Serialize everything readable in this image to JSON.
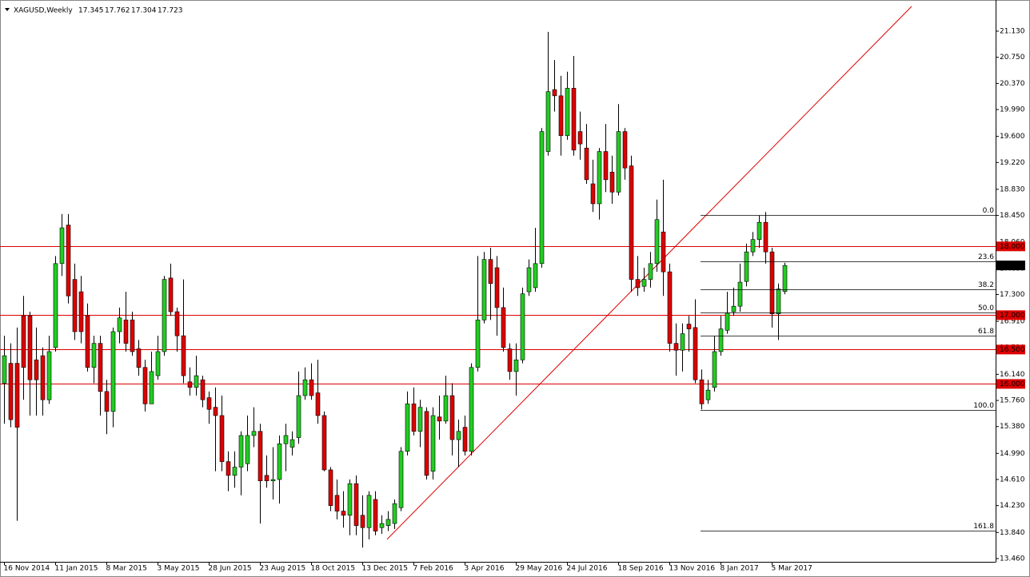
{
  "chart_data": {
    "type": "candlestick",
    "title": "XAGUSD,Weekly",
    "categories": [
      "16 Nov 2014",
      null,
      null,
      null,
      null,
      null,
      null,
      null,
      "11 Jan 2015",
      null,
      null,
      null,
      null,
      null,
      null,
      null,
      "8 Mar 2015",
      null,
      null,
      null,
      null,
      null,
      null,
      null,
      "3 May 2015",
      null,
      null,
      null,
      null,
      null,
      null,
      null,
      "28 Jun 2015",
      null,
      null,
      null,
      null,
      null,
      null,
      null,
      "23 Aug 2015",
      null,
      null,
      null,
      null,
      null,
      null,
      null,
      "18 Oct 2015",
      null,
      null,
      null,
      null,
      null,
      null,
      null,
      "13 Dec 2015",
      null,
      null,
      null,
      null,
      null,
      null,
      null,
      "7 Feb 2016",
      null,
      null,
      null,
      null,
      null,
      null,
      null,
      "3 Apr 2016",
      null,
      null,
      null,
      null,
      null,
      null,
      null,
      "29 May 2016",
      null,
      null,
      null,
      null,
      null,
      null,
      null,
      "24 Jul 2016",
      null,
      null,
      null,
      null,
      null,
      null,
      null,
      "18 Sep 2016",
      null,
      null,
      null,
      null,
      null,
      null,
      null,
      "13 Nov 2016",
      null,
      null,
      null,
      null,
      null,
      null,
      null,
      "8 Jan 2017",
      null,
      null,
      null,
      null,
      null,
      null,
      null,
      "5 Mar 2017",
      null,
      null
    ],
    "open": [
      16.01,
      16.3,
      16.3,
      16.99,
      16.99,
      16.35,
      16.41,
      15.77,
      16.53,
      17.75,
      18.31,
      17.52,
      17.34,
      16.99,
      16.24,
      16.59,
      15.89,
      15.6,
      16.76,
      16.93,
      16.93,
      16.51,
      16.24,
      15.71,
      16.12,
      16.47,
      17.54,
      17.05,
      16.7,
      16.03,
      15.95,
      16.06,
      15.8,
      15.66,
      15.54,
      14.87,
      14.67,
      14.79,
      14.84,
      15.25,
      15.31,
      14.67,
      14.59,
      14.61,
      15.13,
      15.08,
      15.22,
      15.83,
      16.06,
      15.87,
      15.54,
      14.75,
      14.38,
      14.15,
      14.09,
      14.55,
      14.09,
      13.91,
      14.32,
      13.91,
      13.94,
      13.97,
      14.2,
      15.02,
      15.71,
      15.31,
      15.6,
      14.73,
      15.52,
      15.46,
      15.83,
      15.19,
      15.37,
      15.02,
      16.24,
      16.93,
      17.81,
      17.69,
      17.11,
      16.51,
      16.18,
      16.35,
      17.34,
      17.4,
      17.75,
      19.38,
      20.28,
      20.19,
      19.61,
      20.3,
      19.67,
      19.43,
      18.91,
      18.62,
      19.38,
      19.08,
      18.79,
      19.67,
      19.17,
      17.52,
      17.42,
      17.52,
      17.75,
      18.21,
      17.63,
      16.59,
      16.49,
      16.87,
      16.82,
      16.06,
      15.77,
      15.95,
      16.47,
      16.78,
      17.05,
      17.13,
      17.49,
      17.92,
      18.1,
      18.35,
      17.92,
      17.02,
      17.345
    ],
    "high": [
      16.7,
      16.59,
      16.82,
      17.28,
      17.05,
      16.82,
      16.53,
      16.7,
      17.86,
      18.47,
      18.47,
      17.75,
      17.57,
      17.17,
      16.7,
      16.7,
      16.06,
      16.82,
      17.11,
      17.34,
      17.05,
      16.64,
      16.35,
      16.47,
      16.7,
      17.57,
      17.75,
      17.11,
      17.52,
      16.24,
      16.41,
      16.12,
      15.89,
      15.95,
      15.83,
      15.02,
      15.02,
      15.31,
      15.54,
      15.66,
      15.42,
      14.96,
      15.08,
      15.25,
      15.42,
      15.31,
      16.18,
      16.24,
      16.3,
      16.35,
      15.6,
      14.79,
      14.61,
      14.44,
      14.61,
      14.67,
      14.38,
      14.44,
      14.44,
      14.09,
      14.15,
      14.32,
      15.08,
      15.89,
      15.95,
      15.77,
      15.66,
      15.66,
      15.83,
      16.12,
      16.01,
      15.48,
      15.54,
      16.3,
      17.86,
      17.92,
      17.98,
      17.86,
      17.4,
      16.59,
      16.59,
      17.4,
      17.81,
      18.27,
      19.72,
      21.12,
      20.71,
      20.48,
      20.54,
      20.77,
      19.96,
      19.78,
      19.26,
      19.43,
      19.78,
      19.32,
      20.07,
      19.72,
      19.32,
      17.86,
      17.69,
      17.92,
      18.68,
      18.97,
      17.75,
      16.88,
      16.88,
      16.99,
      17.23,
      16.21,
      16.06,
      16.7,
      16.99,
      17.34,
      17.4,
      17.75,
      18.04,
      18.21,
      18.45,
      18.5,
      17.98,
      17.46,
      17.762
    ],
    "low": [
      15.42,
      15.37,
      14.01,
      15.77,
      15.54,
      15.54,
      15.54,
      15.71,
      16.47,
      17.57,
      17.17,
      16.64,
      16.59,
      16.18,
      16.01,
      15.54,
      15.27,
      15.37,
      16.59,
      16.47,
      16.41,
      16.12,
      15.6,
      15.71,
      16.06,
      16.41,
      16.99,
      16.47,
      16.01,
      15.83,
      15.83,
      15.66,
      15.42,
      14.73,
      14.73,
      14.44,
      14.49,
      14.38,
      14.73,
      15.08,
      13.97,
      14.49,
      14.32,
      14.26,
      14.73,
      14.96,
      15.13,
      15.77,
      15.77,
      15.42,
      14.73,
      14.15,
      14.03,
      13.91,
      13.8,
      13.8,
      13.62,
      13.74,
      13.8,
      13.82,
      13.86,
      13.89,
      14.15,
      14.96,
      15.25,
      15.08,
      14.61,
      14.61,
      15.19,
      15.42,
      14.96,
      14.79,
      14.96,
      14.96,
      16.18,
      16.88,
      16.93,
      16.7,
      16.47,
      16.06,
      15.83,
      16.3,
      17.28,
      17.34,
      17.69,
      19.32,
      19.96,
      19.32,
      19.55,
      19.32,
      19.26,
      18.91,
      18.5,
      18.39,
      18.79,
      18.62,
      18.74,
      18.97,
      17.34,
      17.28,
      17.34,
      17.4,
      17.63,
      17.28,
      16.47,
      16.12,
      16.18,
      16.47,
      16.01,
      15.63,
      15.71,
      15.89,
      16.41,
      16.73,
      16.99,
      17.05,
      17.42,
      17.86,
      17.98,
      17.75,
      16.82,
      16.64,
      17.304
    ],
    "close": [
      16.41,
      15.48,
      15.37,
      16.24,
      16.06,
      16.06,
      15.77,
      16.47,
      17.75,
      18.27,
      17.28,
      16.76,
      16.76,
      16.24,
      16.59,
      15.89,
      15.6,
      16.76,
      16.96,
      16.59,
      16.47,
      16.24,
      15.71,
      16.18,
      16.47,
      17.52,
      17.05,
      16.7,
      16.12,
      15.95,
      16.12,
      15.77,
      15.63,
      15.54,
      14.87,
      14.67,
      14.79,
      15.25,
      15.25,
      15.31,
      14.59,
      14.59,
      14.61,
      15.13,
      15.25,
      15.19,
      15.83,
      16.06,
      15.83,
      15.54,
      14.75,
      14.23,
      14.15,
      14.09,
      14.55,
      13.94,
      13.91,
      14.38,
      13.86,
      13.97,
      14.03,
      14.26,
      15.02,
      15.71,
      15.31,
      15.66,
      14.67,
      15.54,
      15.46,
      15.83,
      15.19,
      15.31,
      15.02,
      16.24,
      16.93,
      17.81,
      17.46,
      17.11,
      16.53,
      16.18,
      16.35,
      17.31,
      17.69,
      17.75,
      19.67,
      20.25,
      20.19,
      19.61,
      20.3,
      19.4,
      19.49,
      18.97,
      18.62,
      19.38,
      18.97,
      18.79,
      19.67,
      19.14,
      17.52,
      17.4,
      17.52,
      17.75,
      18.39,
      17.63,
      16.59,
      16.49,
      16.73,
      16.8,
      16.06,
      15.71,
      15.91,
      16.47,
      16.8,
      17.03,
      17.13,
      17.48,
      17.92,
      18.1,
      18.35,
      17.92,
      17.02,
      17.38,
      17.723
    ],
    "up_color": "#22cc22",
    "down_color": "#dd0000",
    "wick_color": "#000000",
    "ylim": [
      13.413,
      21.583
    ],
    "yticks": [
      {
        "value": 21.13,
        "label": "21.130"
      },
      {
        "value": 20.75,
        "label": "20.750"
      },
      {
        "value": 20.37,
        "label": "20.370"
      },
      {
        "value": 19.99,
        "label": "19.990"
      },
      {
        "value": 19.6,
        "label": "19.600"
      },
      {
        "value": 19.22,
        "label": "19.220"
      },
      {
        "value": 18.83,
        "label": "18.830"
      },
      {
        "value": 18.45,
        "label": "18.450"
      },
      {
        "value": 18.06,
        "label": "18.060"
      },
      {
        "value": 17.68,
        "label": "17.680"
      },
      {
        "value": 17.3,
        "label": "17.300"
      },
      {
        "value": 16.91,
        "label": "16.910"
      },
      {
        "value": 16.53,
        "label": "16.530"
      },
      {
        "value": 16.14,
        "label": "16.140"
      },
      {
        "value": 15.76,
        "label": "15.760"
      },
      {
        "value": 15.38,
        "label": "15.380"
      },
      {
        "value": 14.99,
        "label": "14.990"
      },
      {
        "value": 14.61,
        "label": "14.610"
      },
      {
        "value": 14.23,
        "label": "14.230"
      },
      {
        "value": 13.84,
        "label": "13.840"
      },
      {
        "value": 13.46,
        "label": "13.460"
      }
    ],
    "levels": [
      {
        "value": 18,
        "label": "18.000"
      },
      {
        "value": 17,
        "label": "17.000"
      },
      {
        "value": 16.5,
        "label": "16.500"
      },
      {
        "value": 16,
        "label": "16.000"
      }
    ],
    "level_color": "#dd0000",
    "trendline": {
      "start": 13.74,
      "end": 21.49,
      "color": "#dd0000"
    },
    "fib": {
      "high": 18.457,
      "low": 15.622,
      "levels": [
        {
          "value": 0,
          "label": "0.0"
        },
        23.6,
        38.2,
        {
          "value": 50,
          "label": "50.0"
        },
        61.8,
        {
          "value": 100,
          "label": "100.0"
        },
        161.8
      ]
    }
  }
}
